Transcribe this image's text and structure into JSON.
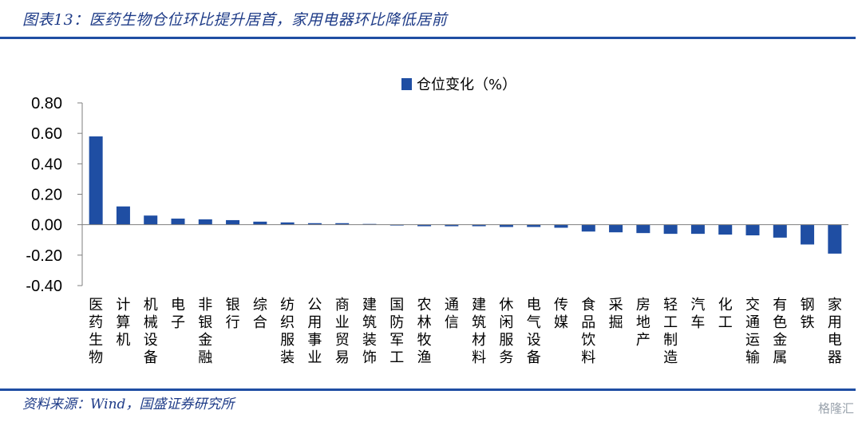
{
  "header": {
    "title": "图表13：医药生物仓位环比提升居首，家用电器环比降低居前"
  },
  "footer": {
    "source": "资料来源：Wind，国盛证券研究所",
    "watermark": "格隆汇"
  },
  "colors": {
    "bar": "#1f4ea3",
    "title": "#1f3c88",
    "rule": "#1f4ea3",
    "axis": "#7f7f7f"
  },
  "chart_data": {
    "type": "bar",
    "title": "",
    "xlabel": "",
    "ylabel": "",
    "ylim": [
      -0.4,
      0.8
    ],
    "yticks": [
      "0.80",
      "0.60",
      "0.40",
      "0.20",
      "0.00",
      "-0.20",
      "-0.40"
    ],
    "legend": {
      "position": "top-center",
      "label": "仓位变化（%）"
    },
    "categories": [
      "医药生物",
      "计算机",
      "机械设备",
      "电子",
      "非银金融",
      "银行",
      "综合",
      "纺织服装",
      "公用事业",
      "商业贸易",
      "建筑装饰",
      "国防军工",
      "农林牧渔",
      "通信",
      "建筑材料",
      "休闲服务",
      "电气设备",
      "传媒",
      "食品饮料",
      "采掘",
      "房地产",
      "轻工制造",
      "汽车",
      "化工",
      "交通运输",
      "有色金属",
      "钢铁",
      "家用电器"
    ],
    "series": [
      {
        "name": "仓位变化（%）",
        "values": [
          0.58,
          0.12,
          0.06,
          0.04,
          0.035,
          0.03,
          0.02,
          0.015,
          0.01,
          0.01,
          0.005,
          -0.005,
          -0.01,
          -0.01,
          -0.01,
          -0.015,
          -0.015,
          -0.02,
          -0.045,
          -0.05,
          -0.055,
          -0.06,
          -0.06,
          -0.065,
          -0.07,
          -0.085,
          -0.13,
          -0.19
        ]
      }
    ]
  }
}
